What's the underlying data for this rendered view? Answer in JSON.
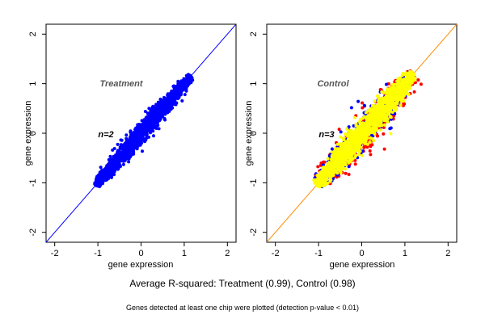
{
  "chart_data": [
    {
      "type": "scatter",
      "panel_label": "Treatment",
      "n_label": "n=2",
      "xlabel": "gene expression",
      "ylabel": "gene expression",
      "xlim": [
        -2.2,
        2.2
      ],
      "ylim": [
        -2.2,
        2.2
      ],
      "xticks": [
        "-2",
        "-1",
        "0",
        "1",
        "2"
      ],
      "yticks": [
        "-2",
        "-1",
        "0",
        "1",
        "2"
      ],
      "identity_line_color": "#0000ff",
      "series": [
        {
          "color": "#0000ff",
          "x_range": [
            -1.05,
            1.15
          ],
          "spread": 0.06
        }
      ]
    },
    {
      "type": "scatter",
      "panel_label": "Control",
      "n_label": "n=3",
      "xlabel": "gene expression",
      "ylabel": "gene expression",
      "xlim": [
        -2.2,
        2.2
      ],
      "ylim": [
        -2.2,
        2.2
      ],
      "xticks": [
        "-2",
        "-1",
        "0",
        "1",
        "2"
      ],
      "yticks": [
        "-2",
        "-1",
        "0",
        "1",
        "2"
      ],
      "identity_line_color": "#ff8c00",
      "series": [
        {
          "color": "#ff0000",
          "x_range": [
            -1.0,
            1.2
          ],
          "spread": 0.13
        },
        {
          "color": "#0000ff",
          "x_range": [
            -1.0,
            1.2
          ],
          "spread": 0.1
        },
        {
          "color": "#ffff00",
          "x_range": [
            -1.05,
            1.2
          ],
          "spread": 0.08
        }
      ]
    }
  ],
  "caption": "Average R-squared: Treatment (0.99), Control (0.98)",
  "footnote": "Genes detected at least one chip were plotted (detection p-value < 0.01)"
}
